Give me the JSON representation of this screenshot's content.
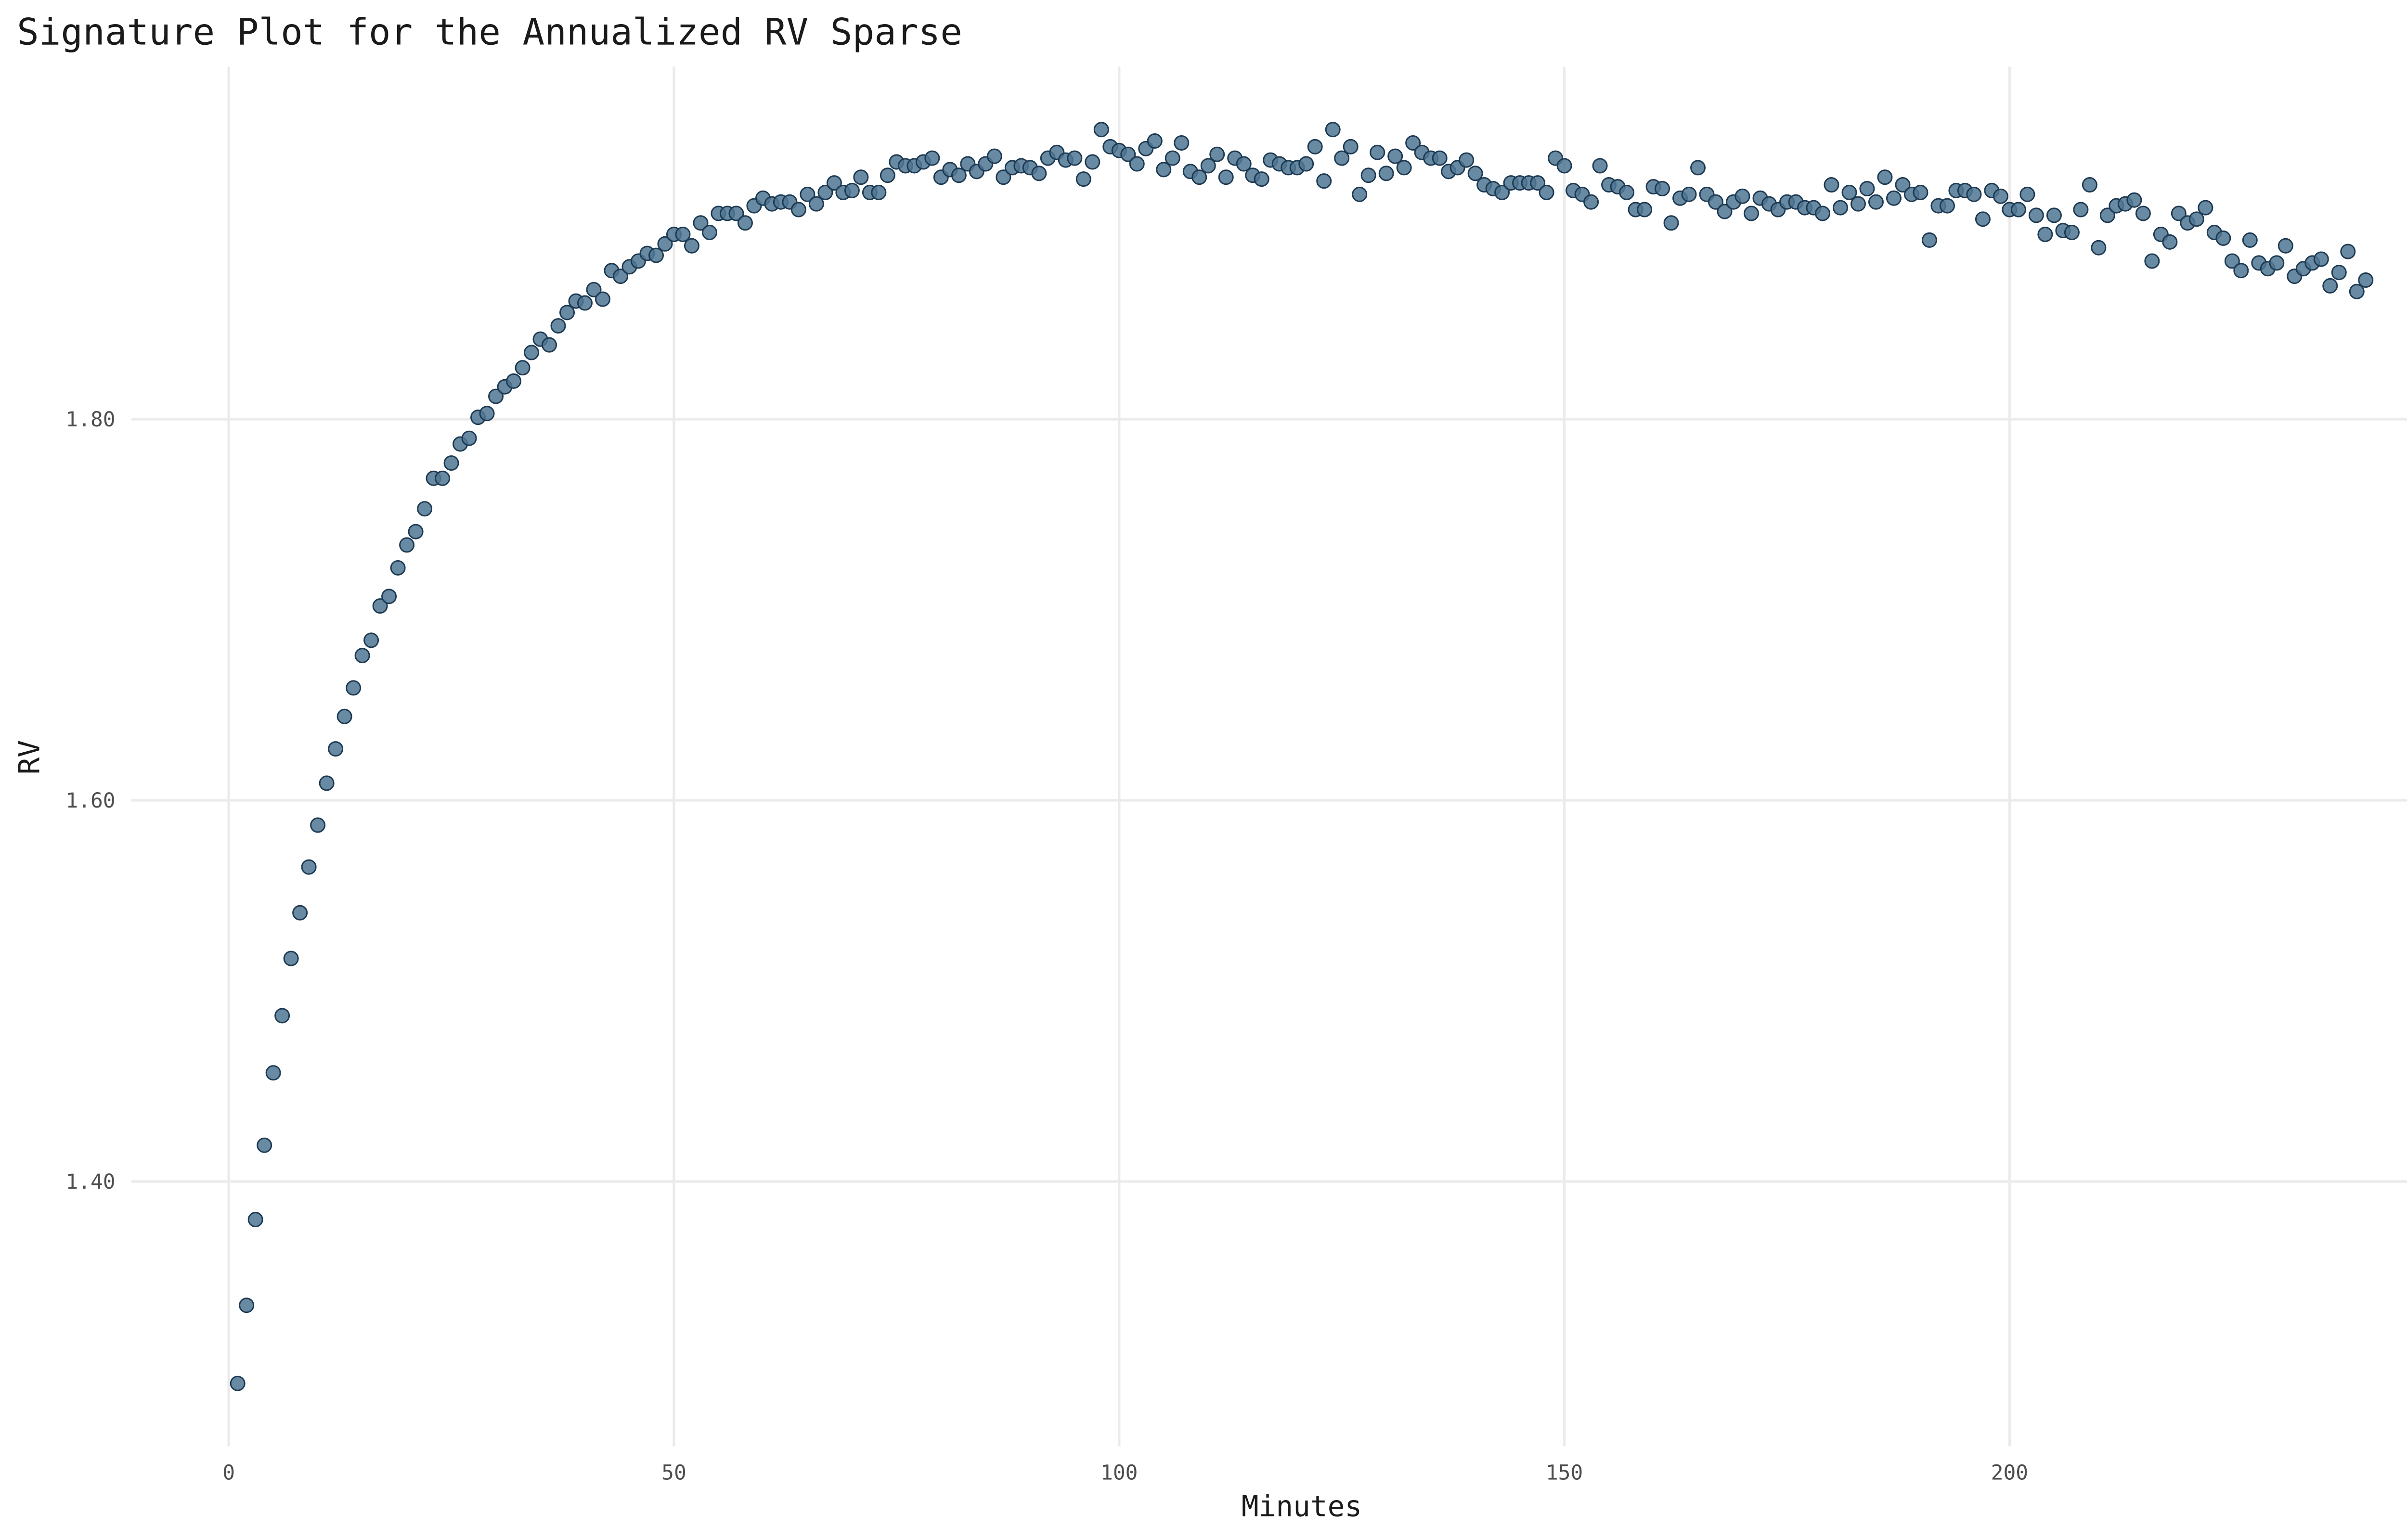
{
  "chart_data": {
    "type": "scatter",
    "title": "Signature Plot for the Annualized RV Sparse",
    "x_label": "Minutes",
    "y_label": "RV",
    "color": "#4f7593",
    "edge_color": "#1e3a52",
    "grid": true,
    "xlim": [
      -10.95,
      251.95
    ],
    "ylim": [
      1.261,
      1.985
    ],
    "xticks": [
      0,
      50,
      100,
      150,
      200,
      250
    ],
    "yticks": [
      {
        "value": 1.4,
        "label": "1.40"
      },
      {
        "value": 1.6,
        "label": "1.60"
      },
      {
        "value": 1.8,
        "label": "1.80"
      }
    ],
    "x": [
      1,
      2,
      3,
      4,
      5,
      6,
      7,
      8,
      9,
      10,
      11,
      12,
      13,
      14,
      15,
      16,
      17,
      18,
      19,
      20,
      21,
      22,
      23,
      24,
      25,
      26,
      27,
      28,
      29,
      30,
      31,
      32,
      33,
      34,
      35,
      36,
      37,
      38,
      39,
      40,
      41,
      42,
      43,
      44,
      45,
      46,
      47,
      48,
      49,
      50,
      51,
      52,
      53,
      54,
      55,
      56,
      57,
      58,
      59,
      60,
      61,
      62,
      63,
      64,
      65,
      66,
      67,
      68,
      69,
      70,
      71,
      72,
      73,
      74,
      75,
      76,
      77,
      78,
      79,
      80,
      81,
      82,
      83,
      84,
      85,
      86,
      87,
      88,
      89,
      90,
      91,
      92,
      93,
      94,
      95,
      96,
      97,
      98,
      99,
      100,
      101,
      102,
      103,
      104,
      105,
      106,
      107,
      108,
      109,
      110,
      111,
      112,
      113,
      114,
      115,
      116,
      117,
      118,
      119,
      120,
      121,
      122,
      123,
      124,
      125,
      126,
      127,
      128,
      129,
      130,
      131,
      132,
      133,
      134,
      135,
      136,
      137,
      138,
      139,
      140,
      141,
      142,
      143,
      144,
      145,
      146,
      147,
      148,
      149,
      150,
      151,
      152,
      153,
      154,
      155,
      156,
      157,
      158,
      159,
      160,
      161,
      162,
      163,
      164,
      165,
      166,
      167,
      168,
      169,
      170,
      171,
      172,
      173,
      174,
      175,
      176,
      177,
      178,
      179,
      180,
      181,
      182,
      183,
      184,
      185,
      186,
      187,
      188,
      189,
      190,
      191,
      192,
      193,
      194,
      195,
      196,
      197,
      198,
      199,
      200,
      201,
      202,
      203,
      204,
      205,
      206,
      207,
      208,
      209,
      210,
      211,
      212,
      213,
      214,
      215,
      216,
      217,
      218,
      219,
      220,
      221,
      222,
      223,
      224,
      225,
      226,
      227,
      228,
      229,
      230,
      231,
      232,
      233,
      234,
      235,
      236,
      237,
      238,
      239,
      240
    ],
    "values": [
      1.294,
      1.335,
      1.38,
      1.419,
      1.457,
      1.487,
      1.517,
      1.541,
      1.565,
      1.587,
      1.609,
      1.627,
      1.644,
      1.659,
      1.676,
      1.684,
      1.702,
      1.707,
      1.722,
      1.734,
      1.741,
      1.753,
      1.769,
      1.769,
      1.777,
      1.787,
      1.79,
      1.801,
      1.803,
      1.812,
      1.817,
      1.82,
      1.827,
      1.835,
      1.842,
      1.839,
      1.849,
      1.856,
      1.862,
      1.861,
      1.868,
      1.863,
      1.878,
      1.875,
      1.88,
      1.883,
      1.887,
      1.886,
      1.892,
      1.897,
      1.897,
      1.891,
      1.903,
      1.898,
      1.908,
      1.908,
      1.908,
      1.903,
      1.912,
      1.916,
      1.913,
      1.914,
      1.914,
      1.91,
      1.918,
      1.913,
      1.919,
      1.924,
      1.919,
      1.92,
      1.927,
      1.919,
      1.919,
      1.928,
      1.935,
      1.933,
      1.933,
      1.935,
      1.937,
      1.927,
      1.931,
      1.928,
      1.934,
      1.93,
      1.934,
      1.938,
      1.927,
      1.932,
      1.933,
      1.932,
      1.929,
      1.937,
      1.94,
      1.936,
      1.937,
      1.926,
      1.935,
      1.952,
      1.943,
      1.941,
      1.939,
      1.934,
      1.942,
      1.946,
      1.931,
      1.937,
      1.945,
      1.93,
      1.927,
      1.933,
      1.939,
      1.927,
      1.937,
      1.934,
      1.928,
      1.926,
      1.936,
      1.934,
      1.932,
      1.932,
      1.934,
      1.943,
      1.925,
      1.952,
      1.937,
      1.943,
      1.918,
      1.928,
      1.94,
      1.929,
      1.938,
      1.932,
      1.945,
      1.94,
      1.937,
      1.937,
      1.93,
      1.932,
      1.936,
      1.929,
      1.923,
      1.921,
      1.919,
      1.924,
      1.924,
      1.924,
      1.924,
      1.919,
      1.937,
      1.933,
      1.92,
      1.918,
      1.914,
      1.933,
      1.923,
      1.922,
      1.919,
      1.91,
      1.91,
      1.922,
      1.921,
      1.903,
      1.916,
      1.918,
      1.932,
      1.918,
      1.914,
      1.909,
      1.914,
      1.917,
      1.908,
      1.916,
      1.913,
      1.91,
      1.914,
      1.914,
      1.911,
      1.911,
      1.908,
      1.923,
      1.911,
      1.919,
      1.913,
      1.921,
      1.914,
      1.927,
      1.916,
      1.923,
      1.918,
      1.919,
      1.894,
      1.912,
      1.912,
      1.92,
      1.92,
      1.918,
      1.905,
      1.92,
      1.917,
      1.91,
      1.91,
      1.918,
      1.907,
      1.897,
      1.907,
      1.899,
      1.898,
      1.91,
      1.923,
      1.89,
      1.907,
      1.912,
      1.913,
      1.915,
      1.908,
      1.883,
      1.897,
      1.893,
      1.908,
      1.903,
      1.905,
      1.911,
      1.898,
      1.895,
      1.883,
      1.878,
      1.894,
      1.882,
      1.879,
      1.882,
      1.891,
      1.875,
      1.879,
      1.882,
      1.884,
      1.87,
      1.877,
      1.888,
      1.867,
      1.873
    ]
  }
}
